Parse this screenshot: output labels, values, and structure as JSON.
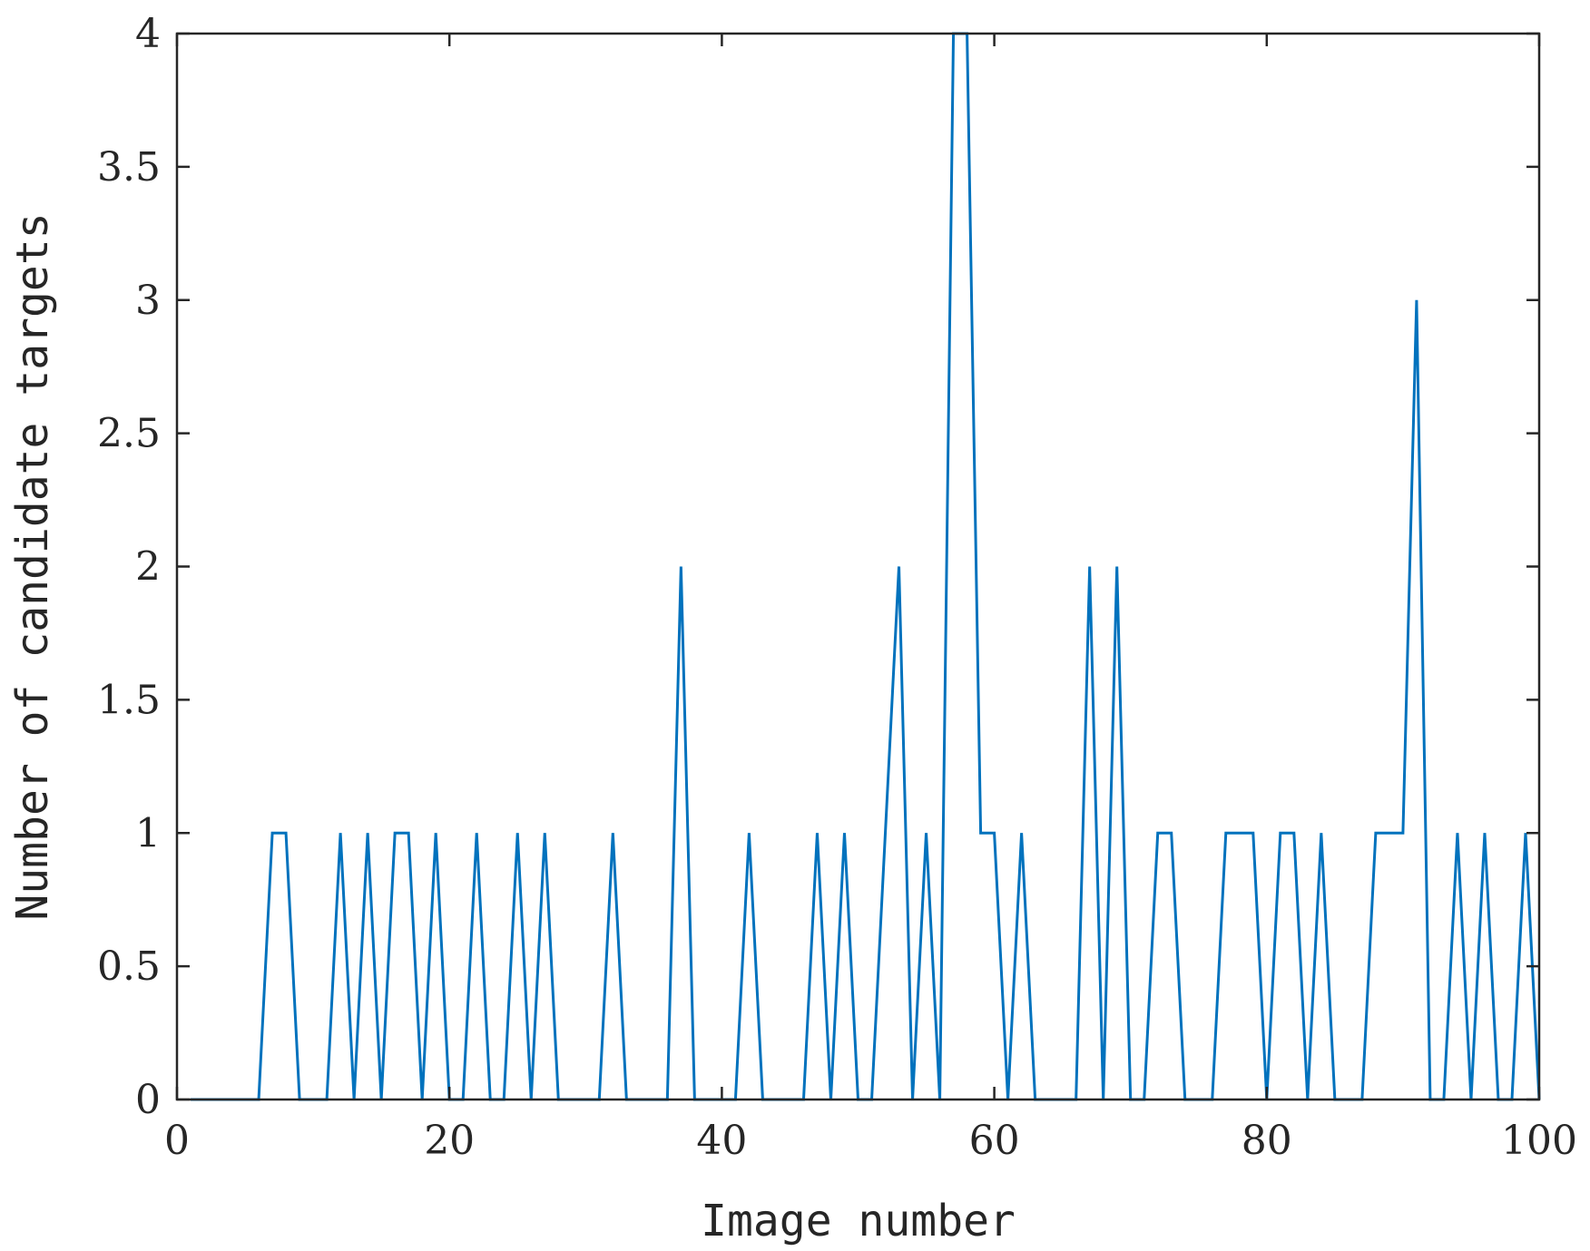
{
  "colors": {
    "series": "#0072BD",
    "axes": "#262626",
    "background": "#ffffff"
  },
  "chart_data": {
    "type": "line",
    "title": "",
    "xlabel": "Image number",
    "ylabel": "Number of candidate targets",
    "xlim": [
      0,
      100
    ],
    "ylim": [
      0,
      4
    ],
    "xticks": [
      0,
      20,
      40,
      60,
      80,
      100
    ],
    "yticks": [
      0,
      0.5,
      1,
      1.5,
      2,
      2.5,
      3,
      3.5,
      4
    ],
    "xtick_labels": [
      "0",
      "20",
      "40",
      "60",
      "80",
      "100"
    ],
    "ytick_labels": [
      "0",
      "0.5",
      "1",
      "1.5",
      "2",
      "2.5",
      "3",
      "3.5",
      "4"
    ],
    "grid": false,
    "box": true,
    "legend": "none",
    "series": [
      {
        "x": [
          1,
          2,
          3,
          4,
          5,
          6,
          7,
          8,
          9,
          10,
          11,
          12,
          13,
          14,
          15,
          16,
          17,
          18,
          19,
          20,
          21,
          22,
          23,
          24,
          25,
          26,
          27,
          28,
          29,
          30,
          31,
          32,
          33,
          34,
          35,
          36,
          37,
          38,
          39,
          40,
          41,
          42,
          43,
          44,
          45,
          46,
          47,
          48,
          49,
          50,
          51,
          52,
          53,
          54,
          55,
          56,
          57,
          58,
          59,
          60,
          61,
          62,
          63,
          64,
          65,
          66,
          67,
          68,
          69,
          70,
          71,
          72,
          73,
          74,
          75,
          76,
          77,
          78,
          79,
          80,
          81,
          82,
          83,
          84,
          85,
          86,
          87,
          88,
          89,
          90,
          91,
          92,
          93,
          94,
          95,
          96,
          97,
          98,
          99,
          100
        ],
        "y": [
          0,
          0,
          0,
          0,
          0,
          0,
          1,
          1,
          0,
          0,
          0,
          1,
          0,
          1,
          0,
          1,
          1,
          0,
          1,
          0,
          0,
          1,
          0,
          0,
          1,
          0,
          1,
          0,
          0,
          0,
          0,
          1,
          0,
          0,
          0,
          0,
          2,
          0,
          0,
          0,
          0,
          1,
          0,
          0,
          0,
          0,
          1,
          0,
          1,
          0,
          0,
          1,
          2,
          0,
          1,
          0,
          4,
          4,
          1,
          1,
          0,
          1,
          0,
          0,
          0,
          0,
          2,
          0,
          2,
          0,
          0,
          1,
          1,
          0,
          0,
          0,
          1,
          1,
          1,
          0,
          1,
          1,
          0,
          1,
          0,
          0,
          0,
          1,
          1,
          1,
          3,
          0,
          0,
          1,
          0,
          1,
          0,
          0,
          1,
          0
        ]
      }
    ]
  }
}
